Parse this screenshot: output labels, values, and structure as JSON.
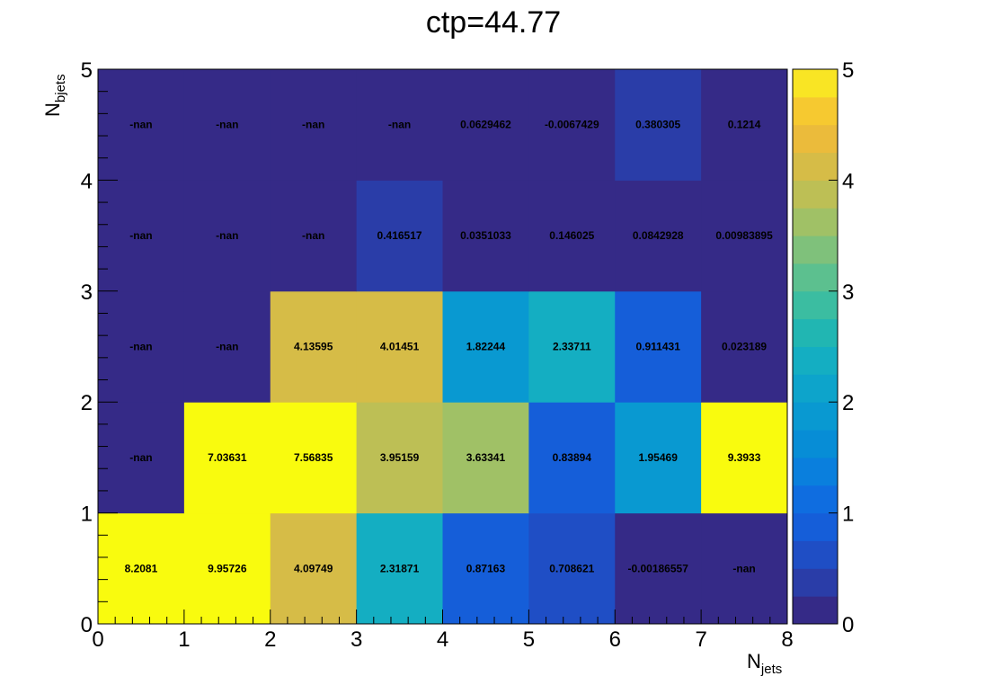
{
  "chart_data": {
    "type": "heatmap",
    "title": "ctp=44.77",
    "xlabel": {
      "base": "N",
      "sub": "jets"
    },
    "ylabel": {
      "base": "N",
      "sub": "bjets"
    },
    "xlim": [
      0,
      8
    ],
    "ylim": [
      0,
      5
    ],
    "x_ticks": [
      0,
      1,
      2,
      3,
      4,
      5,
      6,
      7,
      8
    ],
    "y_ticks": [
      0,
      1,
      2,
      3,
      4,
      5
    ],
    "zlim": [
      0,
      5
    ],
    "z_ticks": [
      0,
      1,
      2,
      3,
      4,
      5
    ],
    "colorbar_levels": 20,
    "palette": [
      "#352a87",
      "#2a3da8",
      "#1f4ec5",
      "#155ed9",
      "#0f6de0",
      "#0a7fdd",
      "#078dd6",
      "#0999d1",
      "#0da4cb",
      "#14aec2",
      "#21b6b2",
      "#3bbda1",
      "#5cc08f",
      "#7fc17b",
      "#a0c166",
      "#bdbf55",
      "#d6bc47",
      "#ebbb3b",
      "#f6c930",
      "#f9e524",
      "#f9fb0e"
    ],
    "cells": [
      [
        {
          "v": 8.2081,
          "label": "8.2081"
        },
        {
          "v": 9.95726,
          "label": "9.95726"
        },
        {
          "v": 4.09749,
          "label": "4.09749"
        },
        {
          "v": 2.31871,
          "label": "2.31871"
        },
        {
          "v": 0.87163,
          "label": "0.87163"
        },
        {
          "v": 0.708621,
          "label": "0.708621"
        },
        {
          "v": -0.00186557,
          "label": "-0.00186557"
        },
        {
          "v": null,
          "label": "-nan"
        }
      ],
      [
        {
          "v": null,
          "label": "-nan"
        },
        {
          "v": 7.03631,
          "label": "7.03631"
        },
        {
          "v": 7.56835,
          "label": "7.56835"
        },
        {
          "v": 3.95159,
          "label": "3.95159"
        },
        {
          "v": 3.63341,
          "label": "3.63341"
        },
        {
          "v": 0.83894,
          "label": "0.83894"
        },
        {
          "v": 1.95469,
          "label": "1.95469"
        },
        {
          "v": 9.3933,
          "label": "9.3933"
        }
      ],
      [
        {
          "v": null,
          "label": "-nan"
        },
        {
          "v": null,
          "label": "-nan"
        },
        {
          "v": 4.13595,
          "label": "4.13595"
        },
        {
          "v": 4.01451,
          "label": "4.01451"
        },
        {
          "v": 1.82244,
          "label": "1.82244"
        },
        {
          "v": 2.33711,
          "label": "2.33711"
        },
        {
          "v": 0.911431,
          "label": "0.911431"
        },
        {
          "v": 0.023189,
          "label": "0.023189"
        }
      ],
      [
        {
          "v": null,
          "label": "-nan"
        },
        {
          "v": null,
          "label": "-nan"
        },
        {
          "v": null,
          "label": "-nan"
        },
        {
          "v": 0.416517,
          "label": "0.416517"
        },
        {
          "v": 0.0351033,
          "label": "0.0351033"
        },
        {
          "v": 0.146025,
          "label": "0.146025"
        },
        {
          "v": 0.0842928,
          "label": "0.0842928"
        },
        {
          "v": 0.00983895,
          "label": "0.00983895"
        }
      ],
      [
        {
          "v": null,
          "label": "-nan"
        },
        {
          "v": null,
          "label": "-nan"
        },
        {
          "v": null,
          "label": "-nan"
        },
        {
          "v": null,
          "label": "-nan"
        },
        {
          "v": 0.0629462,
          "label": "0.0629462"
        },
        {
          "v": -0.0067429,
          "label": "-0.0067429"
        },
        {
          "v": 0.380305,
          "label": "0.380305"
        },
        {
          "v": 0.1214,
          "label": "0.1214"
        }
      ]
    ]
  }
}
